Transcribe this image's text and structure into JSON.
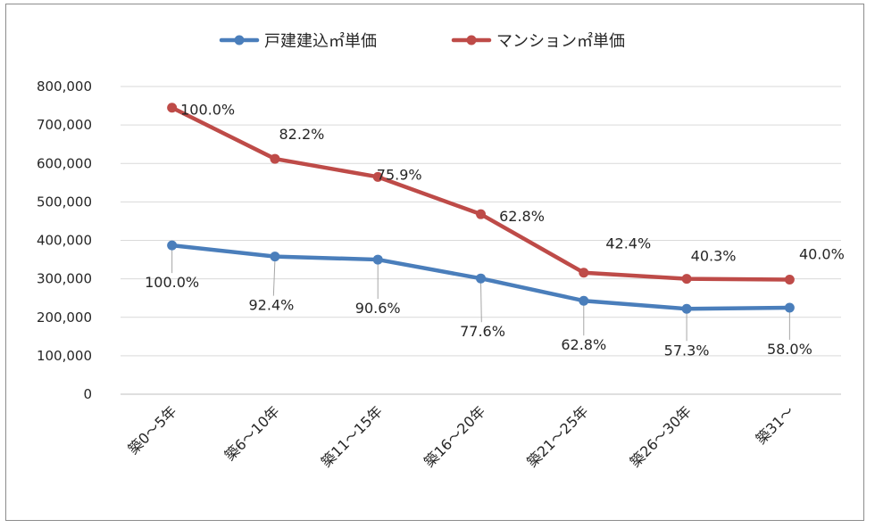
{
  "chart_data": {
    "type": "line",
    "categories": [
      "築0～5年",
      "築6～10年",
      "築11～15年",
      "築16～20年",
      "築21～25年",
      "築26～30年",
      "築31～"
    ],
    "series": [
      {
        "name": "戸建建込㎡単価",
        "color": "#4a7ebb",
        "values": [
          387000,
          358000,
          350000,
          301000,
          243000,
          222000,
          225000
        ],
        "labels": [
          "100.0%",
          "92.4%",
          "90.6%",
          "77.6%",
          "62.8%",
          "57.3%",
          "58.0%"
        ]
      },
      {
        "name": "マンション㎡単価",
        "color": "#be4b48",
        "values": [
          745000,
          612000,
          565000,
          468000,
          316000,
          300000,
          298000
        ],
        "labels": [
          "100.0%",
          "82.2%",
          "75.9%",
          "62.8%",
          "42.4%",
          "40.3%",
          "40.0%"
        ]
      }
    ],
    "yticks": [
      "0",
      "100,000",
      "200,000",
      "300,000",
      "400,000",
      "500,000",
      "600,000",
      "700,000",
      "800,000"
    ],
    "ylim": [
      0,
      800000
    ],
    "grid": true,
    "legend": "top-center"
  }
}
